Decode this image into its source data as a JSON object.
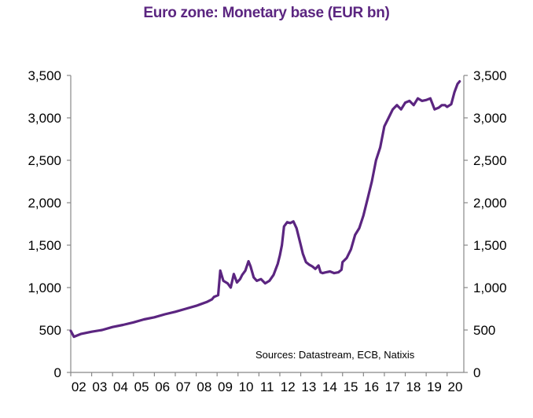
{
  "chart_data": {
    "type": "line",
    "title": "Euro zone: Monetary base (EUR bn)",
    "xlabel": "",
    "ylabel": "",
    "ylim": [
      0,
      3500
    ],
    "xlim": [
      2002,
      2020.8
    ],
    "x_tick_labels": [
      "02",
      "03",
      "04",
      "05",
      "06",
      "07",
      "08",
      "09",
      "10",
      "11",
      "12",
      "13",
      "14",
      "15",
      "16",
      "17",
      "18",
      "19",
      "20"
    ],
    "y_tick_labels": [
      "0",
      "500",
      "1,000",
      "1,500",
      "2,000",
      "2,500",
      "3,000",
      "3,500"
    ],
    "y_tick_values": [
      0,
      500,
      1000,
      1500,
      2000,
      2500,
      3000,
      3500
    ],
    "grid": false,
    "legend": "none",
    "annotation": "Sources:  Datastream,  ECB, Natixis",
    "line_color": "#5b2580",
    "series": [
      {
        "x": [
          2002.0,
          2002.15,
          2002.5,
          2003.0,
          2003.5,
          2004.0,
          2004.5,
          2005.0,
          2005.5,
          2006.0,
          2006.5,
          2007.0,
          2007.5,
          2008.0,
          2008.5,
          2008.75,
          2008.85,
          2008.95,
          2009.05,
          2009.15,
          2009.3,
          2009.5,
          2009.65,
          2009.8,
          2009.95,
          2010.1,
          2010.2,
          2010.35,
          2010.5,
          2010.6,
          2010.75,
          2010.9,
          2011.1,
          2011.3,
          2011.5,
          2011.7,
          2011.9,
          2012.0,
          2012.1,
          2012.2,
          2012.35,
          2012.5,
          2012.65,
          2012.8,
          2012.9,
          2013.0,
          2013.1,
          2013.25,
          2013.4,
          2013.55,
          2013.7,
          2013.85,
          2013.95,
          2014.05,
          2014.2,
          2014.4,
          2014.6,
          2014.8,
          2014.95,
          2015.0,
          2015.2,
          2015.4,
          2015.6,
          2015.8,
          2016.0,
          2016.2,
          2016.4,
          2016.6,
          2016.8,
          2017.0,
          2017.2,
          2017.4,
          2017.6,
          2017.8,
          2018.0,
          2018.2,
          2018.4,
          2018.6,
          2018.8,
          2019.0,
          2019.2,
          2019.4,
          2019.6,
          2019.75,
          2019.9,
          2020.0,
          2020.2,
          2020.35,
          2020.5,
          2020.6
        ],
        "y": [
          490,
          420,
          455,
          480,
          500,
          535,
          560,
          590,
          625,
          650,
          685,
          715,
          750,
          785,
          830,
          860,
          890,
          900,
          910,
          1200,
          1080,
          1050,
          1000,
          1160,
          1060,
          1100,
          1150,
          1200,
          1310,
          1250,
          1120,
          1080,
          1100,
          1050,
          1080,
          1150,
          1280,
          1380,
          1500,
          1720,
          1770,
          1760,
          1780,
          1700,
          1600,
          1500,
          1400,
          1300,
          1270,
          1250,
          1220,
          1260,
          1180,
          1170,
          1180,
          1190,
          1170,
          1180,
          1210,
          1300,
          1350,
          1450,
          1620,
          1700,
          1850,
          2050,
          2250,
          2500,
          2650,
          2900,
          3000,
          3100,
          3150,
          3100,
          3180,
          3200,
          3150,
          3230,
          3200,
          3210,
          3230,
          3100,
          3120,
          3150,
          3150,
          3130,
          3160,
          3300,
          3400,
          3430
        ]
      }
    ]
  }
}
